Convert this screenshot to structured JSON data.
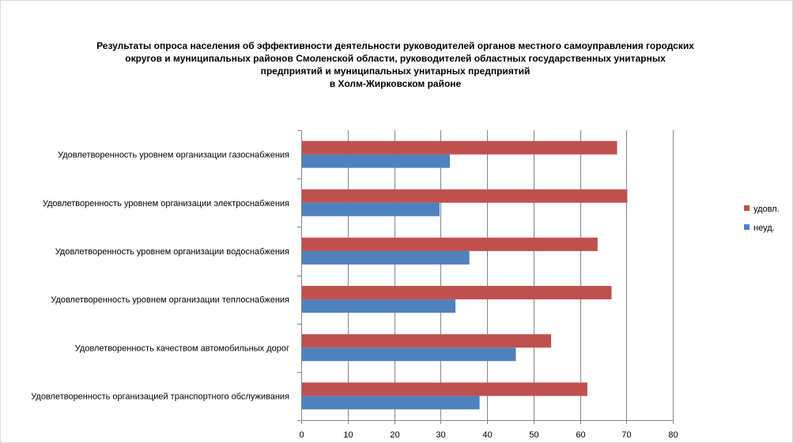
{
  "chart_data": {
    "type": "bar",
    "orientation": "horizontal",
    "title_lines": [
      "Результаты опроса населения об эффективности деятельности руководителей органов местного самоуправления городских",
      "округов и муниципальных районов Смоленской области, руководителей областных государственных унитарных",
      "предприятий и  муниципальных унитарных предприятий",
      "в Холм-Жирковском районе"
    ],
    "categories": [
      "Удовлетворенность  уровнем  организации газоснабжения",
      "Удовлетворенность  уровнем  организации электроснабжения",
      "Удовлетворенность  уровнем  организации водоснабжения",
      "Удовлетворенность  уровнем  организации теплоснабжения",
      "Удовлетворенность  качеством  автомобильных дорог",
      "Удовлетворенность  организацией  транспортного обслуживания"
    ],
    "series": [
      {
        "name": "удовл.",
        "color": "#c0504d",
        "values": [
          68,
          70.2,
          63.8,
          66.8,
          53.8,
          61.6
        ]
      },
      {
        "name": "неуд.",
        "color": "#4f81bd",
        "values": [
          32,
          29.8,
          36.2,
          33.2,
          46.2,
          38.4
        ]
      }
    ],
    "xlim": [
      0,
      80
    ],
    "xticks": [
      0,
      10,
      20,
      30,
      40,
      50,
      60,
      70,
      80
    ],
    "tick_labels": [
      "0",
      "10",
      "20",
      "30",
      "40",
      "50",
      "60",
      "70",
      "80"
    ],
    "grid": true,
    "legend_position": "right"
  }
}
